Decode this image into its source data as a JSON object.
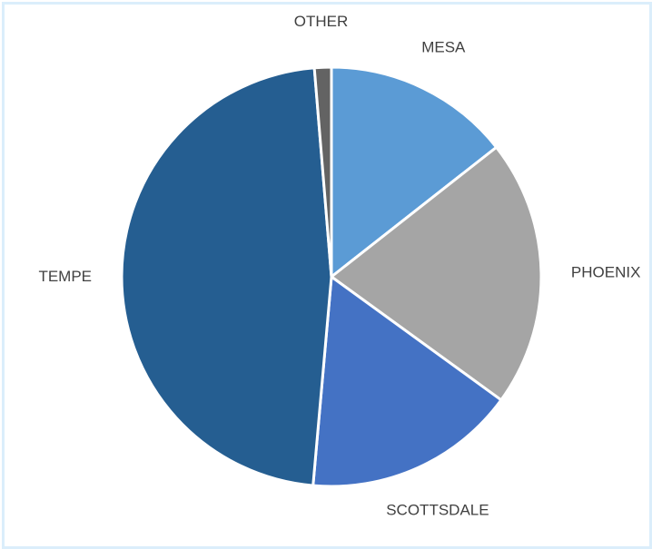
{
  "chart_data": {
    "type": "pie",
    "title": "",
    "categories": [
      "MESA",
      "PHOENIX",
      "SCOTTSDALE",
      "TEMPE",
      "OTHER"
    ],
    "values": [
      14.4,
      20.6,
      16.4,
      47.3,
      1.3
    ],
    "colors": [
      "#5b9bd5",
      "#a5a5a5",
      "#4472c4",
      "#255e91",
      "#636363"
    ],
    "labels_visible": true,
    "legend": "none"
  }
}
